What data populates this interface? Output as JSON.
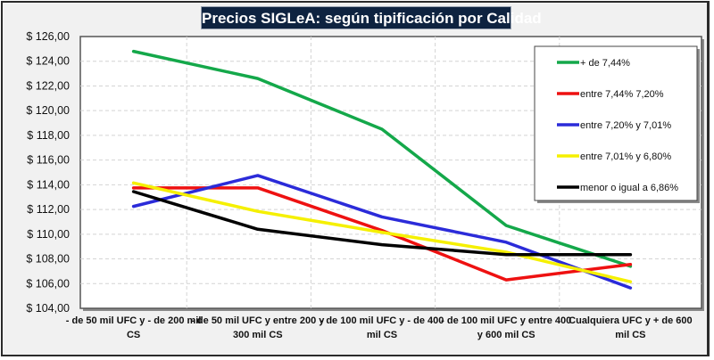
{
  "chart_data": {
    "type": "line",
    "title": "Precios SIGLeA: según tipificación por Calidad",
    "xlabel": "",
    "ylabel": "",
    "ylim": [
      104,
      126
    ],
    "ytick_step": 2,
    "ytick_labels": [
      "$ 104,00",
      "$ 106,00",
      "$ 108,00",
      "$ 110,00",
      "$ 112,00",
      "$ 114,00",
      "$ 116,00",
      "$ 118,00",
      "$ 120,00",
      "$ 122,00",
      "$ 124,00",
      "$ 126,00"
    ],
    "grid": "dashed horizontal and vertical",
    "legend_position": "top-right",
    "categories": [
      [
        "- de 50 mil UFC y - de 200 mil",
        "CS"
      ],
      [
        "- de 50 mil UFC y entre  200 y",
        "300 mil CS"
      ],
      [
        "- de 100 mil UFC y - de 400",
        "mil CS"
      ],
      [
        "- de 100 mil UFC y entre  400",
        "y 600 mil CS"
      ],
      [
        "Cualquiera UFC y + de 600",
        "mil CS"
      ]
    ],
    "series": [
      {
        "name": "+ de 7,44%",
        "color": "#14a84a",
        "values": [
          124.8,
          122.6,
          118.5,
          110.7,
          107.4
        ]
      },
      {
        "name": "entre 7,44% 7,20%",
        "color": "#ee1111",
        "values": [
          113.75,
          113.75,
          110.3,
          106.3,
          107.55
        ]
      },
      {
        "name": "entre 7,20% y 7,01%",
        "color": "#2b2bd9",
        "values": [
          112.25,
          114.75,
          111.4,
          109.35,
          105.65
        ]
      },
      {
        "name": "entre 7,01% y 6,80%",
        "color": "#f5f000",
        "values": [
          114.15,
          111.85,
          110.15,
          108.55,
          106.15
        ]
      },
      {
        "name": "menor o igual a 6,86%",
        "color": "#000000",
        "values": [
          113.45,
          110.4,
          109.15,
          108.35,
          108.35
        ]
      }
    ]
  }
}
